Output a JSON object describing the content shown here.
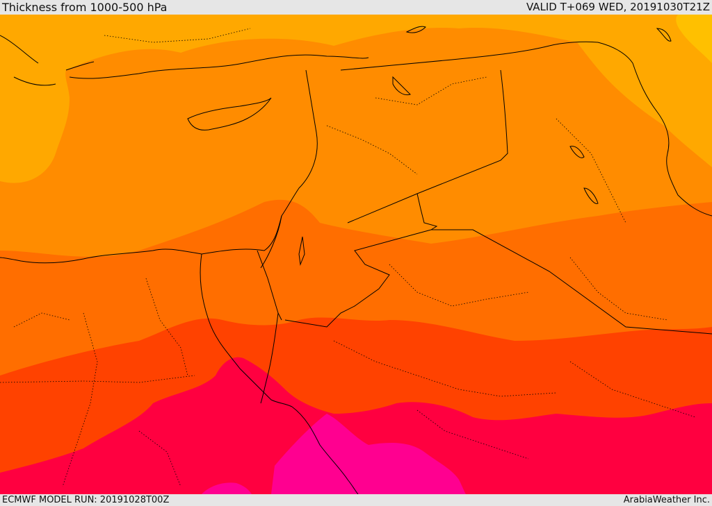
{
  "header": {
    "title": "Thickness from 1000-500 hPa",
    "valid": "VALID T+069 WED, 20191030T21Z"
  },
  "footer": {
    "model_run": "ECMWF MODEL RUN: 20191028T00Z",
    "credit": "ArabiaWeather Inc."
  },
  "map": {
    "field": "1000-500 hPa thickness",
    "colors": {
      "band_1": "#ffc000",
      "band_2": "#ffa800",
      "band_3": "#ff8c00",
      "band_4": "#ff6e00",
      "band_5": "#ff4200",
      "band_6": "#ff0040",
      "band_7": "#ff0090"
    }
  }
}
